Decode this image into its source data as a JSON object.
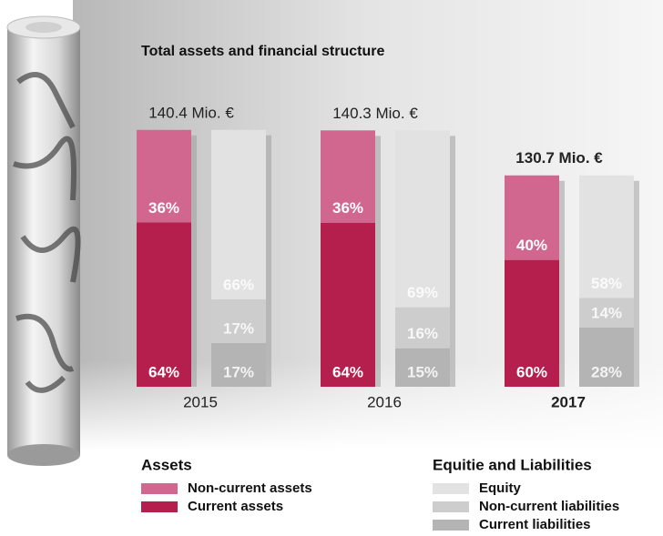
{
  "chart_data": {
    "type": "grouped-stacked-bar",
    "title": "Total assets and financial structure",
    "categories": [
      "2015",
      "2016",
      "2017"
    ],
    "emphasis": "2017",
    "totals": [
      140.4,
      140.3,
      130.7
    ],
    "total_labels": [
      "140.4 Mio. €",
      "140.3 Mio. €",
      "130.7 Mio. €"
    ],
    "stacks": [
      {
        "name": "Assets",
        "series": [
          {
            "name": "Current assets",
            "color": "#b51f4e",
            "values": [
              64,
              64,
              60
            ],
            "value_labels": [
              "64%",
              "64%",
              "60%"
            ]
          },
          {
            "name": "Non-current assets",
            "color": "#d1668e",
            "values": [
              36,
              36,
              40
            ],
            "value_labels": [
              "36%",
              "36%",
              "40%"
            ]
          }
        ]
      },
      {
        "name": "Equitie and Liabilities",
        "series": [
          {
            "name": "Current liabilities",
            "color": "#b4b4b4",
            "values": [
              17,
              15,
              28
            ],
            "value_labels": [
              "17%",
              "15%",
              "28%"
            ]
          },
          {
            "name": "Non-current liabilities",
            "color": "#cdcdcd",
            "values": [
              17,
              16,
              14
            ],
            "value_labels": [
              "17%",
              "16%",
              "14%"
            ]
          },
          {
            "name": "Equity",
            "color": "#e2e2e2",
            "values": [
              66,
              69,
              58
            ],
            "value_labels": [
              "66%",
              "69%",
              "58%"
            ]
          }
        ]
      }
    ]
  }
}
